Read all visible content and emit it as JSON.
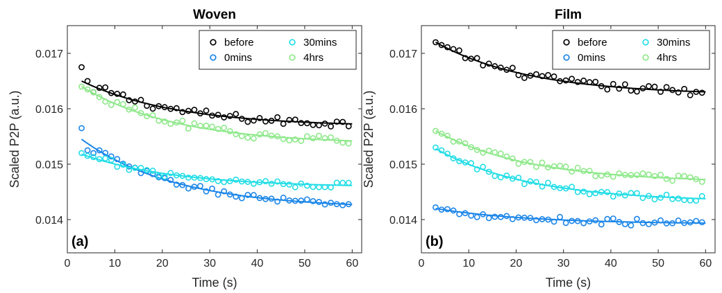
{
  "chart_data": [
    {
      "type": "scatter",
      "title": "Woven",
      "panel_label": "(a)",
      "xlabel": "Time (s)",
      "ylabel": "Scaled P2P (a.u.)",
      "xlim": [
        0,
        62
      ],
      "ylim": [
        0.0134,
        0.0175
      ],
      "xticks": [
        0,
        10,
        20,
        30,
        40,
        50,
        60
      ],
      "yticks": [
        0.014,
        0.015,
        0.016,
        0.017
      ],
      "legend_position": "top-right",
      "series": [
        {
          "name": "before",
          "color": "#000000",
          "fit": {
            "a": 0.0165,
            "b": 0.01568
          },
          "noise": 7e-05,
          "points": [
            [
              3,
              0.01675
            ],
            [
              4,
              0.0165
            ],
            [
              5,
              0.0163
            ]
          ]
        },
        {
          "name": "0mins",
          "color": "#1a85e8",
          "fit": {
            "a": 0.01545,
            "b": 0.0142
          },
          "noise": 5e-05,
          "points": [
            [
              3,
              0.01565
            ],
            [
              4,
              0.01525
            ],
            [
              5,
              0.0152
            ]
          ]
        },
        {
          "name": "30mins",
          "color": "#22dde6",
          "fit": {
            "a": 0.01518,
            "b": 0.01458
          },
          "noise": 6e-05,
          "points": [
            [
              3,
              0.0152
            ],
            [
              4,
              0.01515
            ]
          ]
        },
        {
          "name": "4hrs",
          "color": "#8ee88a",
          "fit": {
            "a": 0.0164,
            "b": 0.01536
          },
          "noise": 7e-05,
          "points": [
            [
              3,
              0.0164
            ],
            [
              4,
              0.01635
            ]
          ]
        }
      ]
    },
    {
      "type": "scatter",
      "title": "Film",
      "panel_label": "(b)",
      "xlabel": "Time (s)",
      "ylabel": "Scaled P2P (a.u.)",
      "xlim": [
        0,
        62
      ],
      "ylim": [
        0.0134,
        0.0175
      ],
      "xticks": [
        0,
        10,
        20,
        30,
        40,
        50,
        60
      ],
      "yticks": [
        0.014,
        0.015,
        0.016,
        0.017
      ],
      "legend_position": "top-right",
      "series": [
        {
          "name": "before",
          "color": "#000000",
          "fit": {
            "a": 0.0172,
            "b": 0.01625
          },
          "noise": 7e-05,
          "points": [
            [
              3,
              0.0172
            ],
            [
              4,
              0.01715
            ]
          ]
        },
        {
          "name": "0mins",
          "color": "#1a85e8",
          "fit": {
            "a": 0.0142,
            "b": 0.01392
          },
          "noise": 6e-05,
          "points": [
            [
              3,
              0.01422
            ],
            [
              4,
              0.01418
            ]
          ]
        },
        {
          "name": "30mins",
          "color": "#22dde6",
          "fit": {
            "a": 0.01528,
            "b": 0.01432
          },
          "noise": 6e-05,
          "points": [
            [
              3,
              0.0153
            ],
            [
              4,
              0.01525
            ]
          ]
        },
        {
          "name": "4hrs",
          "color": "#8ee88a",
          "fit": {
            "a": 0.0156,
            "b": 0.01467
          },
          "noise": 6e-05,
          "points": [
            [
              3,
              0.0156
            ],
            [
              4,
              0.01555
            ]
          ]
        }
      ]
    }
  ]
}
